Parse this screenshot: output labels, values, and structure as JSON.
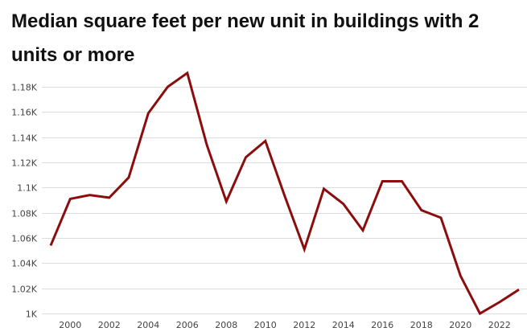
{
  "chart_data": {
    "type": "line",
    "title": "Median square feet per new unit in buildings with 2 units or more",
    "xlabel": "",
    "ylabel": "",
    "x": [
      1999,
      2000,
      2001,
      2002,
      2003,
      2004,
      2005,
      2006,
      2007,
      2008,
      2009,
      2010,
      2011,
      2012,
      2013,
      2014,
      2015,
      2016,
      2017,
      2018,
      2019,
      2020,
      2021,
      2022,
      2023
    ],
    "series": [
      {
        "values": [
          1054,
          1091,
          1094,
          1092,
          1108,
          1159,
          1180,
          1191,
          1134,
          1089,
          1124,
          1137,
          1093,
          1051,
          1099,
          1087,
          1066,
          1105,
          1105,
          1082,
          1076,
          1030,
          1000,
          1009,
          1019
        ],
        "color": "#8b0d0d"
      }
    ],
    "ylim": [
      1000,
      1190
    ],
    "xlim": [
      1999,
      2023
    ],
    "y_ticks": [
      1000,
      1020,
      1040,
      1060,
      1080,
      1100,
      1120,
      1140,
      1160,
      1180
    ],
    "y_tick_labels": [
      "1K",
      "1.02K",
      "1.04K",
      "1.06K",
      "1.08K",
      "1.1K",
      "1.12K",
      "1.14K",
      "1.16K",
      "1.18K"
    ],
    "x_ticks": [
      2000,
      2002,
      2004,
      2006,
      2008,
      2010,
      2012,
      2014,
      2016,
      2018,
      2020,
      2022
    ],
    "x_tick_labels": [
      "2000",
      "2002",
      "2004",
      "2006",
      "2008",
      "2010",
      "2012",
      "2014",
      "2016",
      "2018",
      "2020",
      "2022"
    ],
    "grid": "horizontal",
    "gridline_color": "#dcdcdc",
    "legend": "none"
  }
}
